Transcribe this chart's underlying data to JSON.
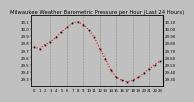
{
  "title": "Milwaukee Weather Barometric Pressure per Hour (Last 24 Hours)",
  "background_color": "#c0c0c0",
  "plot_bg_color": "#c0c0c0",
  "line_color": "#ff0000",
  "marker_color": "#000000",
  "grid_color": "#888888",
  "hours": [
    0,
    1,
    2,
    3,
    4,
    5,
    6,
    7,
    8,
    9,
    10,
    11,
    12,
    13,
    14,
    15,
    16,
    17,
    18,
    19,
    20,
    21,
    22,
    23
  ],
  "pressure": [
    29.75,
    29.72,
    29.78,
    29.82,
    29.88,
    29.96,
    30.02,
    30.08,
    30.1,
    30.06,
    29.98,
    29.88,
    29.72,
    29.58,
    29.42,
    29.32,
    29.28,
    29.26,
    29.28,
    29.32,
    29.38,
    29.44,
    29.5,
    29.55
  ],
  "ylim_min": 29.2,
  "ylim_max": 30.2,
  "title_fontsize": 3.8,
  "tick_fontsize": 2.8,
  "grid_x_positions": [
    3,
    6,
    9,
    12,
    15,
    18,
    21
  ],
  "hour_labels": [
    "0",
    "1",
    "2",
    "3",
    "4",
    "5",
    "6",
    "7",
    "8",
    "9",
    "10",
    "11",
    "12",
    "13",
    "14",
    "15",
    "16",
    "17",
    "18",
    "19",
    "20",
    "21",
    "22",
    "23"
  ],
  "right_yticks": [
    30.1,
    30.0,
    29.9,
    29.8,
    29.7,
    29.6,
    29.5,
    29.4,
    29.3
  ],
  "left_ytick_labels": [
    "30.1",
    "30.0",
    "29.9",
    "29.8",
    "29.7",
    "29.6",
    "29.5",
    "29.4",
    "29.3"
  ]
}
